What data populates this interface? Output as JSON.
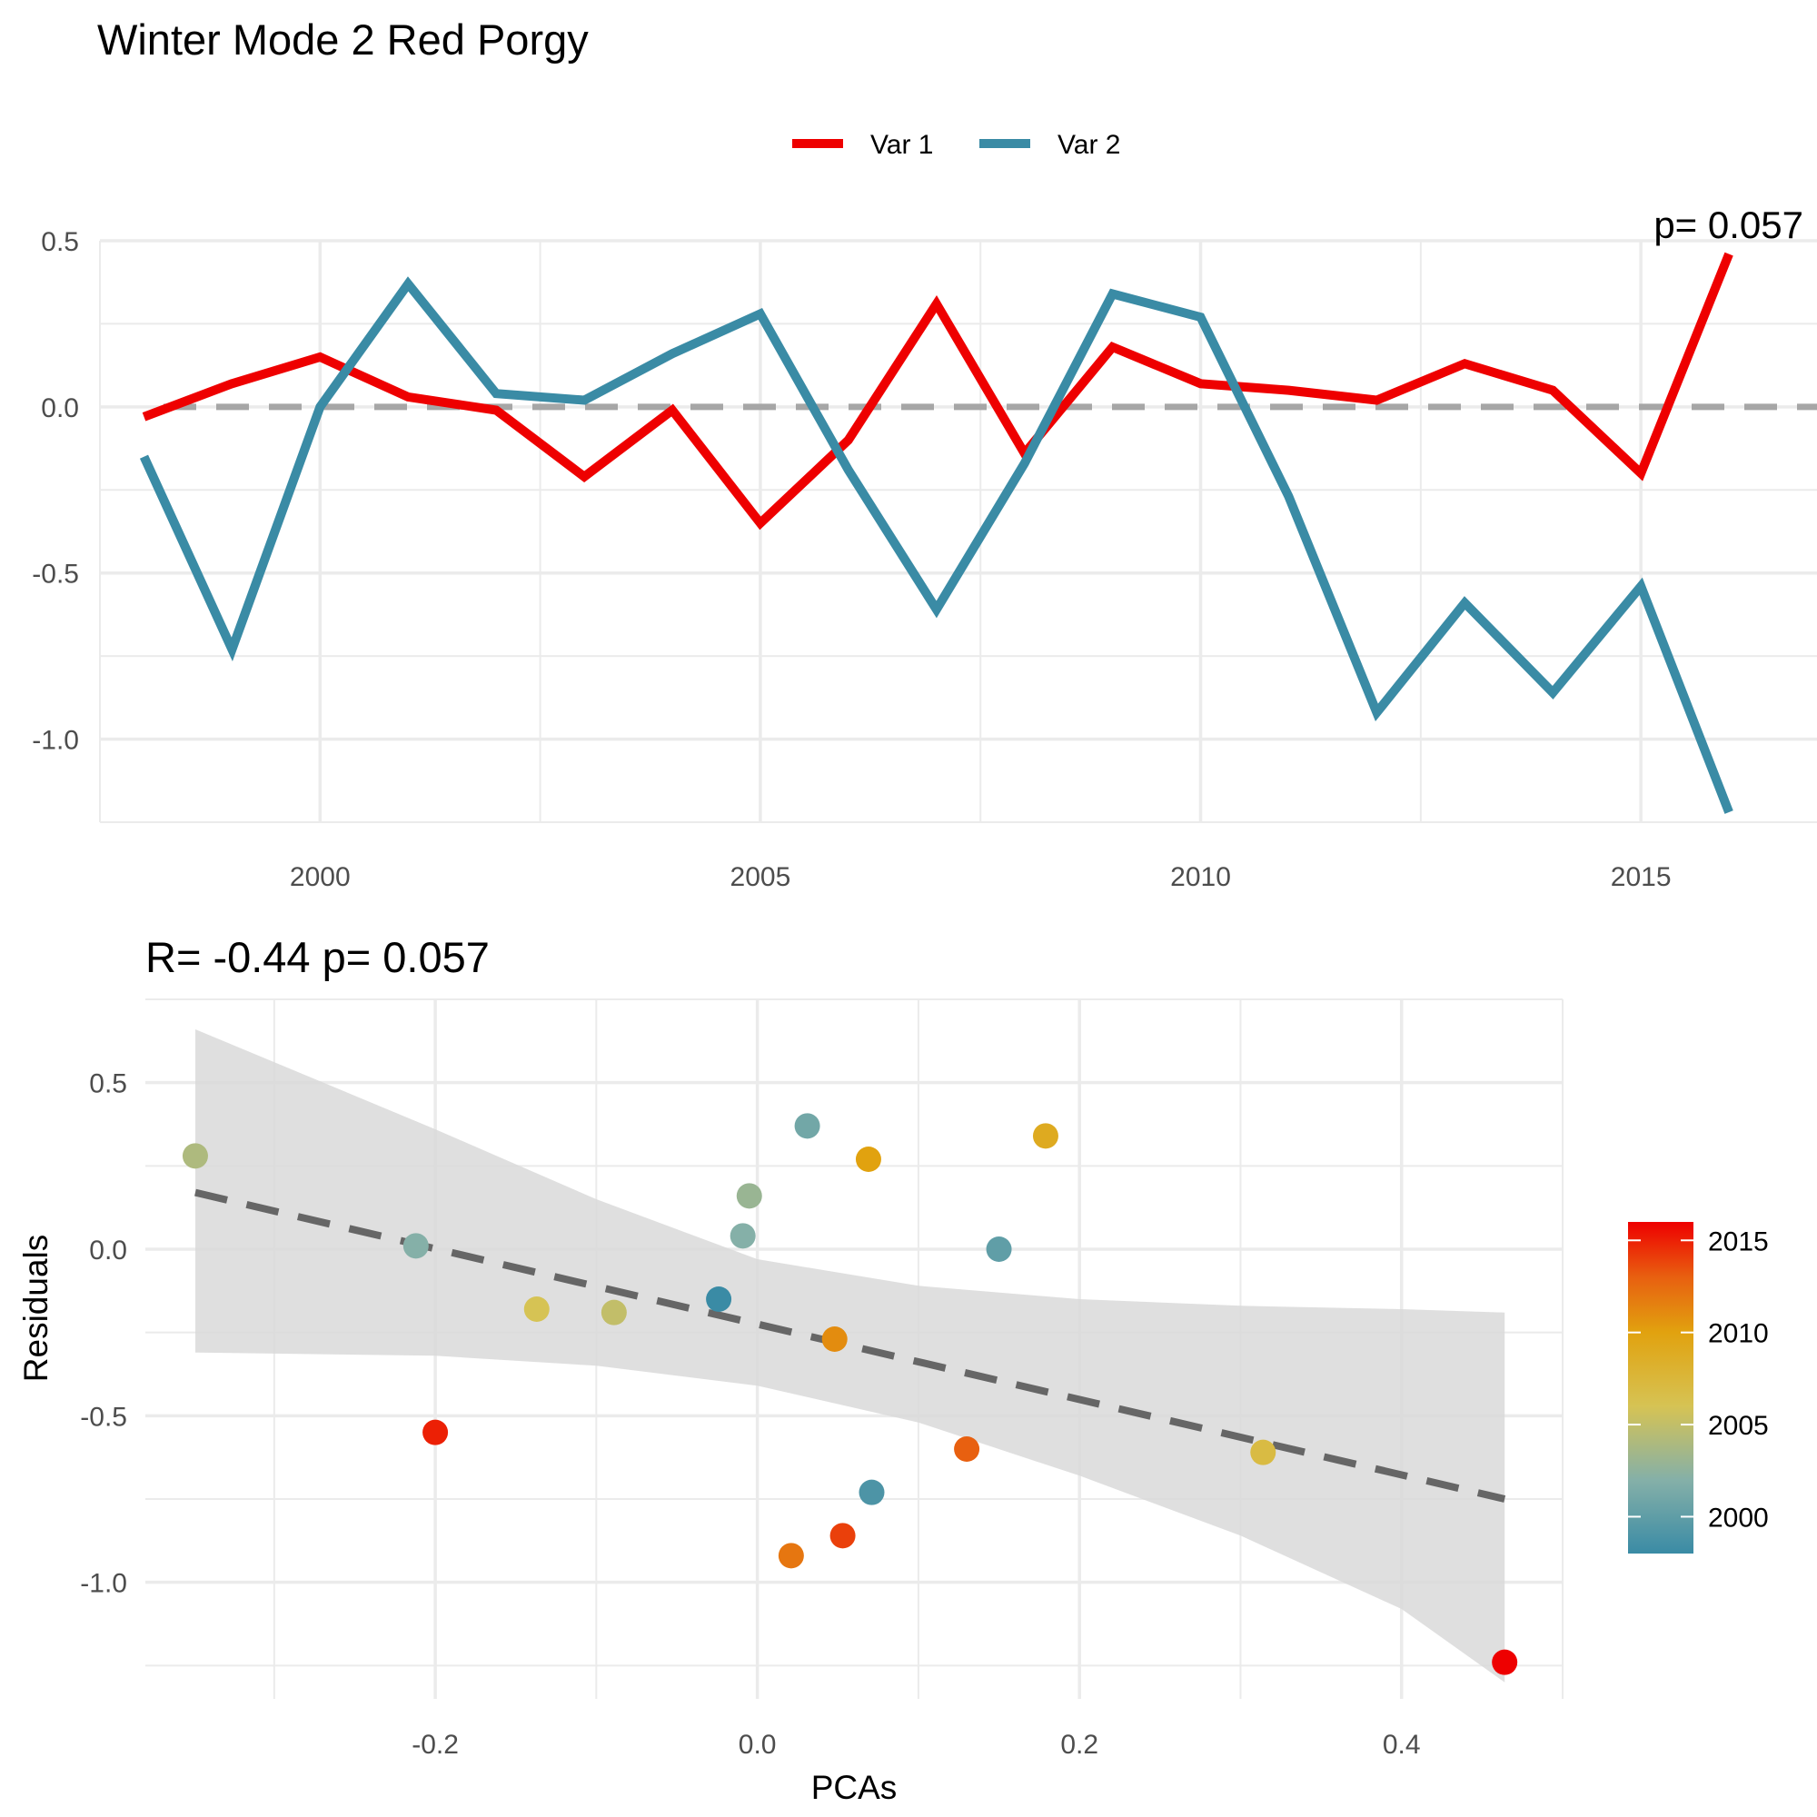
{
  "title": "Winter Mode 2  Red Porgy",
  "colors": {
    "var1": "#ee0000",
    "var2": "#3a8ba5",
    "grid": "#ebebeb",
    "zero": "#a6a6a6",
    "ribbon": "#d9d9d9",
    "fit": "#666666"
  },
  "chart_data": [
    {
      "type": "line",
      "title": "",
      "corner_text": "p= 0.057",
      "xlabel": "",
      "ylabel": "",
      "xlim": [
        1997.5,
        2017
      ],
      "ylim": [
        -1.25,
        0.5
      ],
      "xticks": [
        2000,
        2005,
        2010,
        2015
      ],
      "xtick_labels": [
        "2000",
        "2005",
        "2010",
        "2015"
      ],
      "yticks": [
        0.5,
        0.0,
        -0.5,
        -1.0
      ],
      "ytick_labels": [
        "0.5",
        "0.0",
        "-0.5",
        "-1.0"
      ],
      "x": [
        1998,
        1999,
        2000,
        2001,
        2002,
        2003,
        2004,
        2005,
        2006,
        2007,
        2008,
        2009,
        2010,
        2011,
        2012,
        2013,
        2014,
        2015,
        2016
      ],
      "series": [
        {
          "name": "Var 1",
          "color": "#ee0000",
          "values": [
            -0.03,
            0.07,
            0.15,
            0.03,
            -0.01,
            -0.21,
            -0.01,
            -0.35,
            -0.1,
            0.31,
            -0.14,
            0.18,
            0.07,
            0.05,
            0.02,
            0.13,
            0.05,
            -0.2,
            0.46
          ]
        },
        {
          "name": "Var 2",
          "color": "#3a8ba5",
          "values": [
            -0.15,
            -0.73,
            0.0,
            0.37,
            0.04,
            0.02,
            0.16,
            0.28,
            -0.19,
            -0.61,
            -0.17,
            0.34,
            0.27,
            -0.27,
            -0.92,
            -0.59,
            -0.86,
            -0.54,
            -1.22
          ]
        }
      ],
      "legend": {
        "position": "top",
        "entries": [
          "Var 1",
          "Var 2"
        ]
      },
      "grid": true,
      "reference_line": {
        "y": 0,
        "style": "dashed"
      }
    },
    {
      "type": "scatter",
      "title": "R= -0.44  p= 0.057",
      "xlabel": "PCAs",
      "ylabel": "Residuals",
      "xlim": [
        -0.38,
        0.5
      ],
      "ylim": [
        -1.35,
        0.75
      ],
      "xticks": [
        -0.2,
        0.0,
        0.2,
        0.4
      ],
      "xtick_labels": [
        "-0.2",
        "0.0",
        "0.2",
        "0.4"
      ],
      "yticks": [
        0.5,
        0.0,
        -0.5,
        -1.0
      ],
      "ytick_labels": [
        "0.5",
        "0.0",
        "-0.5",
        "-1.0"
      ],
      "points": [
        {
          "x": -0.349,
          "y": 0.28,
          "year": 2004
        },
        {
          "x": -0.212,
          "y": 0.01,
          "year": 2002
        },
        {
          "x": -0.2,
          "y": -0.55,
          "year": 2015
        },
        {
          "x": -0.137,
          "y": -0.18,
          "year": 2006
        },
        {
          "x": -0.089,
          "y": -0.19,
          "year": 2005
        },
        {
          "x": -0.024,
          "y": -0.15,
          "year": 1998
        },
        {
          "x": -0.009,
          "y": 0.04,
          "year": 2002
        },
        {
          "x": -0.005,
          "y": 0.16,
          "year": 2003
        },
        {
          "x": 0.021,
          "y": -0.92,
          "year": 2012
        },
        {
          "x": 0.031,
          "y": 0.37,
          "year": 2001
        },
        {
          "x": 0.048,
          "y": -0.27,
          "year": 2011
        },
        {
          "x": 0.053,
          "y": -0.86,
          "year": 2014
        },
        {
          "x": 0.069,
          "y": 0.27,
          "year": 2010
        },
        {
          "x": 0.071,
          "y": -0.73,
          "year": 1999
        },
        {
          "x": 0.13,
          "y": -0.6,
          "year": 2013
        },
        {
          "x": 0.15,
          "y": 0.0,
          "year": 2000
        },
        {
          "x": 0.179,
          "y": 0.34,
          "year": 2009
        },
        {
          "x": 0.314,
          "y": -0.61,
          "year": 2007
        },
        {
          "x": 0.464,
          "y": -1.24,
          "year": 2016
        }
      ],
      "fit_line": {
        "style": "dashed",
        "x": [
          -0.349,
          0.464
        ],
        "y": [
          0.17,
          -0.75
        ]
      },
      "confidence_band": {
        "x": [
          -0.349,
          -0.2,
          -0.1,
          0.0,
          0.1,
          0.2,
          0.3,
          0.4,
          0.464
        ],
        "upper": [
          0.66,
          0.36,
          0.15,
          -0.03,
          -0.11,
          -0.15,
          -0.17,
          -0.18,
          -0.19
        ],
        "lower": [
          -0.31,
          -0.32,
          -0.35,
          -0.41,
          -0.52,
          -0.68,
          -0.86,
          -1.08,
          -1.3
        ]
      },
      "colorbar": {
        "range": [
          1998,
          2016
        ],
        "ticks": [
          2015,
          2010,
          2005,
          2000
        ],
        "tick_labels": [
          "2015",
          "2010",
          "2005",
          "2000"
        ],
        "stops": [
          {
            "value": 1998,
            "color": "#3a8ba5"
          },
          {
            "value": 2002,
            "color": "#85b0a8"
          },
          {
            "value": 2006,
            "color": "#d6c354"
          },
          {
            "value": 2010,
            "color": "#e1a20f"
          },
          {
            "value": 2013,
            "color": "#e86010"
          },
          {
            "value": 2016,
            "color": "#ee0000"
          }
        ]
      },
      "grid": true
    }
  ]
}
